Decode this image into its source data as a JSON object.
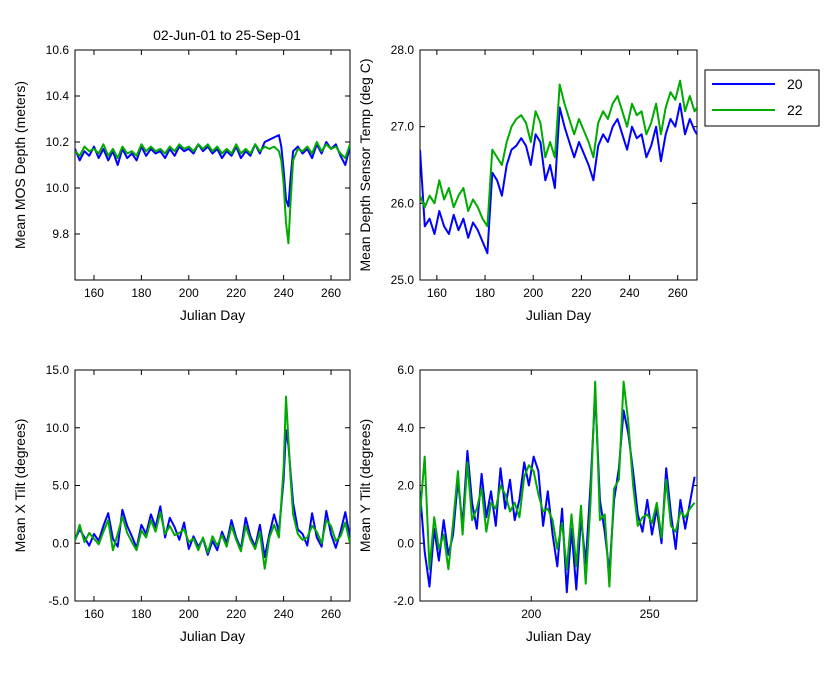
{
  "title": "02-Jun-01 to 25-Sep-01",
  "legend": {
    "position": "right",
    "entries": [
      {
        "name": "20",
        "color": "#0000ff"
      },
      {
        "name": "22",
        "color": "#00aa00"
      }
    ]
  },
  "chart_data": [
    {
      "type": "line",
      "xlabel": "Julian Day",
      "ylabel": "Mean MOS Depth  (meters)",
      "xlim": [
        152,
        268
      ],
      "ylim": [
        9.6,
        10.6
      ],
      "xticks": [
        160,
        180,
        200,
        220,
        240,
        260
      ],
      "yticks": [
        9.8,
        10.0,
        10.2,
        10.4,
        10.6
      ],
      "yfmt": 1,
      "grid": false,
      "series": [
        {
          "name": "20",
          "color": "#0000ff",
          "x": [
            152,
            154,
            156,
            158,
            160,
            162,
            164,
            166,
            168,
            170,
            172,
            174,
            176,
            178,
            180,
            182,
            184,
            186,
            188,
            190,
            192,
            194,
            196,
            198,
            200,
            202,
            204,
            206,
            208,
            210,
            212,
            214,
            216,
            218,
            220,
            222,
            224,
            226,
            228,
            230,
            232,
            234,
            236,
            238,
            239,
            240,
            241,
            242,
            243,
            244,
            246,
            248,
            250,
            252,
            254,
            256,
            258,
            260,
            262,
            264,
            266,
            268
          ],
          "y": [
            10.17,
            10.12,
            10.16,
            10.14,
            10.18,
            10.13,
            10.17,
            10.12,
            10.16,
            10.1,
            10.17,
            10.13,
            10.15,
            10.12,
            10.18,
            10.14,
            10.17,
            10.15,
            10.16,
            10.13,
            10.17,
            10.14,
            10.18,
            10.16,
            10.17,
            10.15,
            10.19,
            10.16,
            10.18,
            10.15,
            10.17,
            10.13,
            10.16,
            10.14,
            10.18,
            10.13,
            10.16,
            10.14,
            10.19,
            10.15,
            10.2,
            10.21,
            10.22,
            10.23,
            10.18,
            10.08,
            9.95,
            9.92,
            10.05,
            10.16,
            10.18,
            10.15,
            10.17,
            10.13,
            10.19,
            10.15,
            10.2,
            10.17,
            10.19,
            10.14,
            10.1,
            10.18
          ]
        },
        {
          "name": "22",
          "color": "#00aa00",
          "x": [
            152,
            154,
            156,
            158,
            160,
            162,
            164,
            166,
            168,
            170,
            172,
            174,
            176,
            178,
            180,
            182,
            184,
            186,
            188,
            190,
            192,
            194,
            196,
            198,
            200,
            202,
            204,
            206,
            208,
            210,
            212,
            214,
            216,
            218,
            220,
            222,
            224,
            226,
            228,
            230,
            232,
            234,
            236,
            238,
            239,
            240,
            241,
            242,
            243,
            244,
            246,
            248,
            250,
            252,
            254,
            256,
            258,
            260,
            262,
            264,
            266,
            268
          ],
          "y": [
            10.16,
            10.14,
            10.18,
            10.16,
            10.17,
            10.15,
            10.19,
            10.14,
            10.17,
            10.13,
            10.18,
            10.15,
            10.16,
            10.14,
            10.19,
            10.16,
            10.18,
            10.16,
            10.17,
            10.15,
            10.18,
            10.16,
            10.19,
            10.17,
            10.18,
            10.16,
            10.19,
            10.17,
            10.19,
            10.16,
            10.18,
            10.15,
            10.17,
            10.15,
            10.19,
            10.15,
            10.17,
            10.15,
            10.19,
            10.16,
            10.18,
            10.17,
            10.18,
            10.16,
            10.12,
            10.02,
            9.85,
            9.76,
            9.95,
            10.12,
            10.17,
            10.16,
            10.18,
            10.15,
            10.2,
            10.16,
            10.19,
            10.17,
            10.18,
            10.15,
            10.13,
            10.19
          ]
        }
      ]
    },
    {
      "type": "line",
      "xlabel": "Julian Day",
      "ylabel": "Mean Depth Sensor Temp (deg C)",
      "xlim": [
        153,
        268
      ],
      "ylim": [
        25.0,
        28.0
      ],
      "xticks": [
        160,
        180,
        200,
        220,
        240,
        260
      ],
      "yticks": [
        25.0,
        26.0,
        27.0,
        28.0
      ],
      "yfmt": 1,
      "grid": false,
      "series": [
        {
          "name": "20",
          "color": "#0000ff",
          "x": [
            153,
            155,
            157,
            159,
            161,
            163,
            165,
            167,
            169,
            171,
            173,
            175,
            177,
            179,
            181,
            183,
            185,
            187,
            189,
            191,
            193,
            195,
            197,
            199,
            201,
            203,
            205,
            207,
            209,
            211,
            213,
            215,
            217,
            219,
            221,
            223,
            225,
            227,
            229,
            231,
            233,
            235,
            237,
            239,
            241,
            243,
            245,
            247,
            249,
            251,
            253,
            255,
            257,
            259,
            261,
            263,
            265,
            267,
            268
          ],
          "y": [
            26.7,
            25.7,
            25.8,
            25.6,
            25.9,
            25.7,
            25.6,
            25.85,
            25.65,
            25.8,
            25.55,
            25.75,
            25.65,
            25.5,
            25.35,
            26.4,
            26.3,
            26.1,
            26.5,
            26.7,
            26.75,
            26.85,
            26.75,
            26.5,
            26.9,
            26.8,
            26.3,
            26.5,
            26.2,
            27.25,
            27.0,
            26.8,
            26.6,
            26.8,
            26.65,
            26.5,
            26.3,
            26.75,
            26.9,
            26.8,
            27.0,
            27.1,
            26.9,
            26.7,
            27.0,
            26.85,
            26.9,
            26.6,
            26.75,
            27.0,
            26.55,
            26.9,
            27.1,
            27.0,
            27.3,
            26.9,
            27.1,
            26.95,
            26.9
          ]
        },
        {
          "name": "22",
          "color": "#00aa00",
          "x": [
            153,
            155,
            157,
            159,
            161,
            163,
            165,
            167,
            169,
            171,
            173,
            175,
            177,
            179,
            181,
            183,
            185,
            187,
            189,
            191,
            193,
            195,
            197,
            199,
            201,
            203,
            205,
            207,
            209,
            211,
            213,
            215,
            217,
            219,
            221,
            223,
            225,
            227,
            229,
            231,
            233,
            235,
            237,
            239,
            241,
            243,
            245,
            247,
            249,
            251,
            253,
            255,
            257,
            259,
            261,
            263,
            265,
            267,
            268
          ],
          "y": [
            26.1,
            25.95,
            26.1,
            26.0,
            26.3,
            26.05,
            26.2,
            25.95,
            26.1,
            26.2,
            25.9,
            26.05,
            25.95,
            25.8,
            25.7,
            26.7,
            26.6,
            26.5,
            26.8,
            27.0,
            27.1,
            27.15,
            27.05,
            26.8,
            27.2,
            27.05,
            26.6,
            26.8,
            26.6,
            27.55,
            27.3,
            27.1,
            26.9,
            27.1,
            26.95,
            26.8,
            26.6,
            27.05,
            27.2,
            27.1,
            27.3,
            27.4,
            27.2,
            27.0,
            27.3,
            27.15,
            27.2,
            26.9,
            27.05,
            27.3,
            26.9,
            27.25,
            27.45,
            27.35,
            27.6,
            27.2,
            27.4,
            27.2,
            27.25
          ]
        }
      ]
    },
    {
      "type": "line",
      "xlabel": "Julian Day",
      "ylabel": "Mean X Tilt  (degrees)",
      "xlim": [
        152,
        268
      ],
      "ylim": [
        -5.0,
        15.0
      ],
      "xticks": [
        160,
        180,
        200,
        220,
        240,
        260
      ],
      "yticks": [
        -5.0,
        0.0,
        5.0,
        10.0,
        15.0
      ],
      "yfmt": 1,
      "grid": false,
      "series": [
        {
          "name": "20",
          "color": "#0000ff",
          "x": [
            152,
            154,
            156,
            158,
            160,
            162,
            164,
            166,
            168,
            170,
            172,
            174,
            176,
            178,
            180,
            182,
            184,
            186,
            188,
            190,
            192,
            194,
            196,
            198,
            200,
            202,
            204,
            206,
            208,
            210,
            212,
            214,
            216,
            218,
            220,
            222,
            224,
            226,
            228,
            230,
            232,
            234,
            236,
            238,
            240,
            241,
            242,
            243,
            244,
            246,
            248,
            250,
            252,
            254,
            256,
            258,
            260,
            262,
            264,
            266,
            268
          ],
          "y": [
            0.3,
            1.2,
            0.5,
            -0.2,
            0.8,
            0.2,
            1.5,
            2.6,
            0.4,
            -0.3,
            2.9,
            1.5,
            0.6,
            -0.4,
            1.6,
            0.8,
            2.5,
            1.4,
            3.2,
            0.5,
            2.2,
            1.4,
            0.3,
            1.8,
            -0.5,
            0.6,
            -0.3,
            0.4,
            -1.0,
            0.2,
            -0.6,
            1.0,
            0.0,
            2.0,
            0.5,
            -0.5,
            2.2,
            0.6,
            -0.3,
            1.6,
            -1.2,
            0.8,
            2.5,
            1.0,
            5.5,
            9.8,
            8.5,
            6.0,
            3.5,
            1.2,
            0.8,
            -0.2,
            2.6,
            0.5,
            -0.3,
            2.8,
            0.8,
            -0.4,
            1.0,
            2.7,
            0.5
          ]
        },
        {
          "name": "22",
          "color": "#00aa00",
          "x": [
            152,
            154,
            156,
            158,
            160,
            162,
            164,
            166,
            168,
            170,
            172,
            174,
            176,
            178,
            180,
            182,
            184,
            186,
            188,
            190,
            192,
            194,
            196,
            198,
            200,
            202,
            204,
            206,
            208,
            210,
            212,
            214,
            216,
            218,
            220,
            222,
            224,
            226,
            228,
            230,
            232,
            234,
            236,
            238,
            240,
            241,
            242,
            243,
            244,
            246,
            248,
            250,
            252,
            254,
            256,
            258,
            260,
            262,
            264,
            266,
            268
          ],
          "y": [
            0.2,
            1.6,
            0.1,
            0.9,
            0.4,
            -0.1,
            1.0,
            2.0,
            -0.6,
            0.8,
            2.3,
            0.9,
            0.1,
            -0.6,
            1.1,
            0.5,
            2.0,
            1.0,
            2.7,
            0.8,
            1.5,
            0.7,
            0.9,
            1.2,
            0.1,
            0.4,
            -0.6,
            0.5,
            -0.8,
            0.6,
            -0.2,
            0.7,
            -0.3,
            1.5,
            0.3,
            -0.7,
            1.5,
            0.3,
            -0.5,
            1.0,
            -2.2,
            0.5,
            1.6,
            0.5,
            6.5,
            12.7,
            9.0,
            5.5,
            2.5,
            0.8,
            0.3,
            0.5,
            1.5,
            1.0,
            0.0,
            2.0,
            1.5,
            0.2,
            0.6,
            1.8,
            0.0
          ]
        }
      ]
    },
    {
      "type": "line",
      "xlabel": "Julian Day",
      "ylabel": "Mean Y Tilt  (degrees)",
      "xlim": [
        153,
        270
      ],
      "ylim": [
        -2.0,
        6.0
      ],
      "xticks": [
        200,
        250
      ],
      "yticks": [
        -2.0,
        0.0,
        2.0,
        4.0,
        6.0
      ],
      "yfmt": 1,
      "grid": false,
      "series": [
        {
          "name": "20",
          "color": "#0000ff",
          "x": [
            153,
            155,
            157,
            159,
            161,
            163,
            165,
            167,
            169,
            171,
            173,
            175,
            177,
            179,
            181,
            183,
            185,
            187,
            189,
            191,
            193,
            195,
            197,
            199,
            201,
            203,
            205,
            207,
            209,
            211,
            213,
            215,
            217,
            219,
            221,
            223,
            225,
            227,
            229,
            231,
            233,
            235,
            237,
            239,
            241,
            243,
            245,
            247,
            249,
            251,
            253,
            255,
            257,
            259,
            261,
            263,
            265,
            267,
            269
          ],
          "y": [
            1.8,
            -0.3,
            -1.5,
            0.5,
            -0.6,
            0.8,
            -0.4,
            0.3,
            2.2,
            0.6,
            3.2,
            1.4,
            0.5,
            2.4,
            0.9,
            1.8,
            0.6,
            2.6,
            1.2,
            2.2,
            0.8,
            1.5,
            2.8,
            2.0,
            3.0,
            2.5,
            0.6,
            1.8,
            0.3,
            -0.8,
            1.2,
            -1.7,
            0.5,
            -1.6,
            0.9,
            -0.7,
            2.0,
            5.2,
            1.5,
            0.4,
            -1.0,
            1.5,
            2.6,
            4.6,
            3.8,
            2.5,
            1.0,
            0.4,
            1.5,
            0.3,
            1.2,
            0.0,
            2.6,
            1.0,
            -0.2,
            1.5,
            0.5,
            1.4,
            2.3
          ]
        },
        {
          "name": "22",
          "color": "#00aa00",
          "x": [
            153,
            155,
            157,
            159,
            161,
            163,
            165,
            167,
            169,
            171,
            173,
            175,
            177,
            179,
            181,
            183,
            185,
            187,
            189,
            191,
            193,
            195,
            197,
            199,
            201,
            203,
            205,
            207,
            209,
            211,
            213,
            215,
            217,
            219,
            221,
            223,
            225,
            227,
            229,
            231,
            233,
            235,
            237,
            239,
            241,
            243,
            245,
            247,
            249,
            251,
            253,
            255,
            257,
            259,
            261,
            263,
            265,
            267,
            269
          ],
          "y": [
            1.0,
            3.0,
            -0.9,
            0.9,
            -0.2,
            0.3,
            -0.9,
            0.7,
            2.5,
            0.3,
            2.8,
            0.8,
            1.2,
            1.9,
            0.4,
            1.4,
            1.2,
            2.0,
            1.7,
            1.1,
            1.4,
            0.9,
            2.3,
            2.7,
            2.5,
            1.7,
            1.1,
            1.2,
            0.8,
            -0.2,
            0.7,
            -0.9,
            1.0,
            -0.8,
            1.3,
            -1.4,
            1.4,
            5.6,
            0.8,
            1.0,
            -1.5,
            1.9,
            2.2,
            5.6,
            4.2,
            2.0,
            0.6,
            0.9,
            1.0,
            0.7,
            1.4,
            0.2,
            2.2,
            0.6,
            0.4,
            1.1,
            0.9,
            1.2,
            1.4
          ]
        }
      ]
    }
  ]
}
